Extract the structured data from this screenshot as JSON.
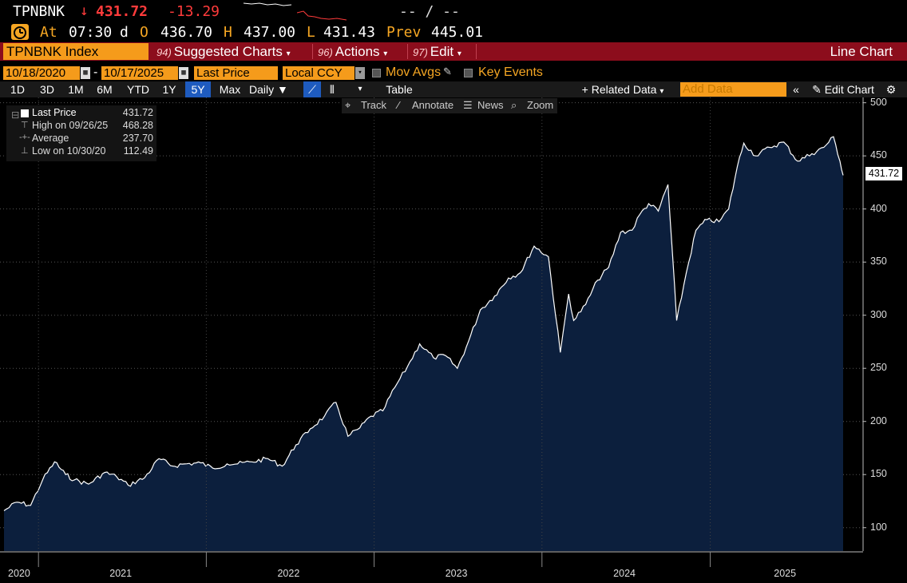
{
  "header": {
    "ticker": "TPNBNK",
    "direction_icon": "down-arrow",
    "last_price": "431.72",
    "change": "-13.29",
    "right_placeholder": "-- / --",
    "at_label": "At",
    "time": "07:30",
    "d_label": "d",
    "open_label": "O",
    "open": "436.70",
    "high_label": "H",
    "high": "437.00",
    "low_label": "L",
    "low": "431.43",
    "prev_label": "Prev",
    "prev": "445.01"
  },
  "menubar": {
    "security": "TPNBNK Index",
    "items": [
      {
        "num": "94)",
        "label": "Suggested Charts"
      },
      {
        "num": "96)",
        "label": "Actions"
      },
      {
        "num": "97)",
        "label": "Edit"
      }
    ],
    "chart_type": "Line Chart"
  },
  "controls": {
    "start_date": "10/18/2020",
    "end_date": "10/17/2025",
    "date_sep": "-",
    "field": "Last Price",
    "currency": "Local CCY",
    "mov_avgs": "Mov Avgs",
    "key_events": "Key Events"
  },
  "periods": [
    "1D",
    "3D",
    "1M",
    "6M",
    "YTD",
    "1Y",
    "5Y",
    "Max"
  ],
  "active_period": "5Y",
  "frequency": "Daily",
  "table_label": "Table",
  "related_data": "+ Related Data",
  "add_data_placeholder": "Add Data",
  "edit_chart": "Edit Chart",
  "toolbar": {
    "track": "Track",
    "annotate": "Annotate",
    "news": "News",
    "zoom": "Zoom"
  },
  "legend": [
    {
      "label": "Last Price",
      "value": "431.72"
    },
    {
      "label": "High on 09/26/25",
      "value": "468.28"
    },
    {
      "label": "Average",
      "value": "237.70"
    },
    {
      "label": "Low on 10/30/20",
      "value": "112.49"
    }
  ],
  "colors": {
    "accent_orange": "#f59b1b",
    "menu_red": "#8c0d1c",
    "down_red": "#ff3b3b",
    "area_fill": "#0c1f3d",
    "line": "#ffffff"
  },
  "chart_data": {
    "type": "area",
    "x_labels": [
      "2020",
      "2021",
      "2022",
      "2023",
      "2024",
      "2025"
    ],
    "y_ticks": [
      100,
      150,
      200,
      250,
      300,
      350,
      400,
      450,
      500
    ],
    "ylim": [
      78,
      505
    ],
    "last_label": "431.72",
    "series": [
      {
        "name": "Last Price",
        "x": [
          "2020-10-18",
          "2020-11-15",
          "2020-12-15",
          "2021-01-10",
          "2021-02-05",
          "2021-03-01",
          "2021-03-20",
          "2021-04-20",
          "2021-05-25",
          "2021-06-20",
          "2021-07-15",
          "2021-08-20",
          "2021-09-20",
          "2021-10-20",
          "2021-11-15",
          "2021-12-20",
          "2022-01-15",
          "2022-02-15",
          "2022-03-10",
          "2022-04-10",
          "2022-05-15",
          "2022-06-15",
          "2022-07-15",
          "2022-08-15",
          "2022-09-15",
          "2022-10-10",
          "2022-11-05",
          "2022-12-01",
          "2022-12-25",
          "2023-01-20",
          "2023-02-15",
          "2023-03-15",
          "2023-04-10",
          "2023-05-10",
          "2023-06-05",
          "2023-07-01",
          "2023-07-25",
          "2023-08-20",
          "2023-09-20",
          "2023-10-20",
          "2023-11-15",
          "2023-12-15",
          "2024-01-15",
          "2024-02-10",
          "2024-02-28",
          "2024-03-10",
          "2024-04-05",
          "2024-05-01",
          "2024-05-25",
          "2024-06-20",
          "2024-07-15",
          "2024-08-01",
          "2024-08-20",
          "2024-09-10",
          "2024-10-01",
          "2024-10-20",
          "2024-11-10",
          "2024-12-01",
          "2024-12-25",
          "2025-01-20",
          "2025-02-10",
          "2025-03-01",
          "2025-03-15",
          "2025-04-10",
          "2025-05-10",
          "2025-06-10",
          "2025-07-10",
          "2025-08-10",
          "2025-09-05",
          "2025-09-26",
          "2025-10-10",
          "2025-10-17"
        ],
        "values": [
          116,
          124,
          121,
          145,
          162,
          150,
          145,
          141,
          152,
          148,
          140,
          147,
          165,
          158,
          160,
          161,
          156,
          160,
          160,
          162,
          165,
          158,
          178,
          193,
          205,
          218,
          186,
          194,
          205,
          210,
          232,
          252,
          273,
          260,
          262,
          250,
          275,
          305,
          318,
          335,
          340,
          365,
          355,
          265,
          320,
          295,
          310,
          333,
          345,
          378,
          380,
          395,
          405,
          398,
          423,
          295,
          340,
          380,
          390,
          388,
          400,
          440,
          462,
          450,
          458,
          463,
          445,
          452,
          458,
          468,
          445,
          431.72
        ]
      }
    ]
  }
}
